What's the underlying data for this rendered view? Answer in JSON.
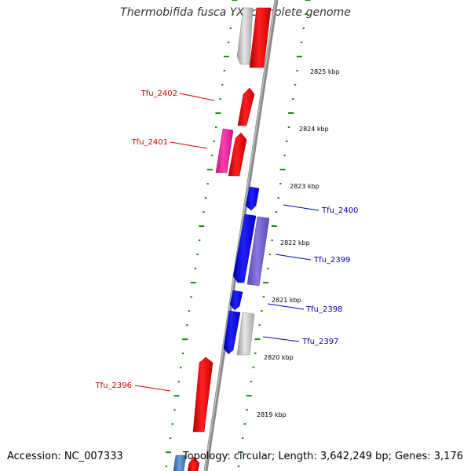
{
  "title": "Thermobifida fusca YX, complete genome",
  "footer": {
    "accession": "Accession: NC_007333",
    "summary": "Topology: circular; Length: 3,642,249 bp; Genes: 3,176"
  },
  "colors": {
    "backbone": "#888888",
    "tick": "#1a8a1a",
    "forward_gene": "#ff1a1a",
    "reverse_gene": "#1a1aee",
    "label_forward": "#cc0000",
    "label_reverse": "#0000aa"
  },
  "scale_labels": [
    "2825 kbp",
    "2824 kbp",
    "2823 kbp",
    "2822 kbp",
    "2821 kbp",
    "2820 kbp",
    "2819 kbp"
  ],
  "gene_labels": [
    {
      "name": "Tfu_2402",
      "strand": "forward"
    },
    {
      "name": "Tfu_2401",
      "strand": "forward"
    },
    {
      "name": "Tfu_2400",
      "strand": "reverse"
    },
    {
      "name": "Tfu_2399",
      "strand": "reverse"
    },
    {
      "name": "Tfu_2398",
      "strand": "reverse"
    },
    {
      "name": "Tfu_2397",
      "strand": "reverse"
    },
    {
      "name": "Tfu_2396",
      "strand": "forward"
    }
  ]
}
